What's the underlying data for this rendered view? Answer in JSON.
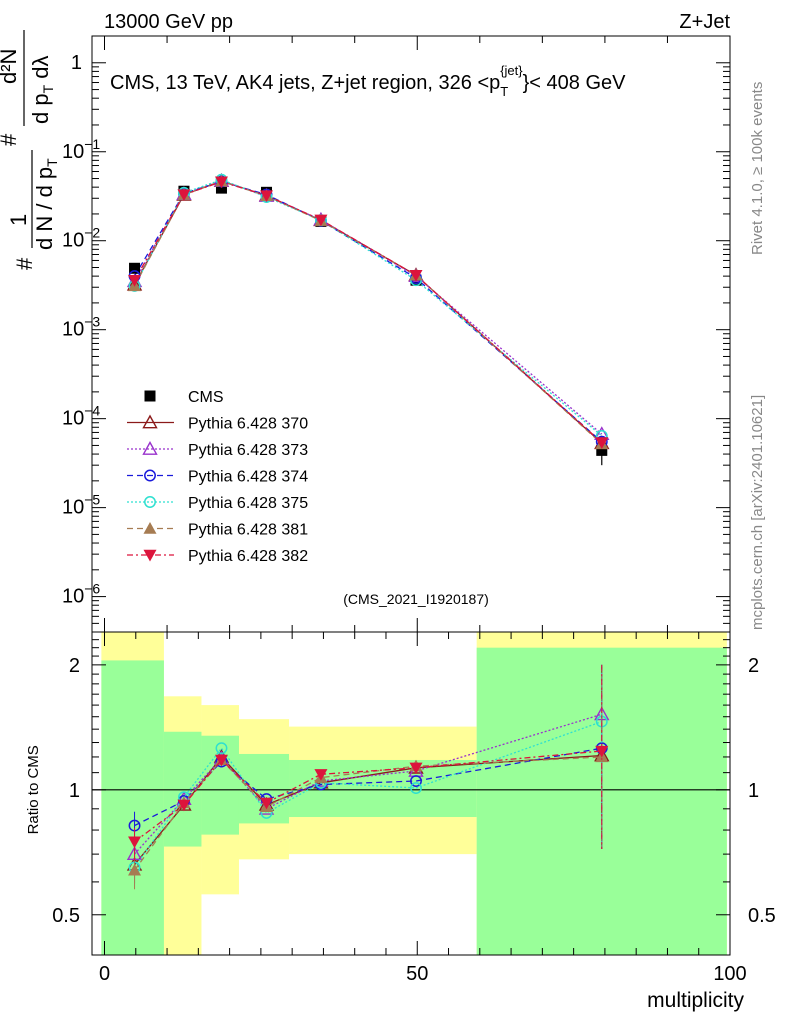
{
  "header": {
    "left": "13000 GeV pp",
    "right": "Z+Jet"
  },
  "side": {
    "top": "Rivet 4.1.0, ≥ 100k events",
    "bottom": "mcplots.cern.ch [arXiv:2401.10621]"
  },
  "chart_data": [
    {
      "type": "line",
      "title": "CMS, 13 TeV, AK4 jets, Z+jet region, 326 <p_T^{jet}< 408 GeV",
      "title_parts": {
        "main": "CMS, 13 TeV, AK4 jets, Z+jet region, 326 <p",
        "sub": "T",
        "sup": "{jet}",
        "end": "}< 408 GeV"
      },
      "ylabel": "1/dN/dp_T  d²N/dp_T dλ",
      "ylabel_parts": {
        "pre": "1",
        "den": "d N / d p",
        "sub": "T",
        "num": "d²N",
        "den2": "d p",
        "sub2": "T",
        "lam": " dλ",
        "hash": "#"
      },
      "yscale": "log",
      "ylim": [
        4e-07,
        2.0
      ],
      "y_ticks": [
        {
          "v": 1e-06,
          "base": "10",
          "exp": "−6"
        },
        {
          "v": 1e-05,
          "base": "10",
          "exp": "−5"
        },
        {
          "v": 0.0001,
          "base": "10",
          "exp": "−4"
        },
        {
          "v": 0.001,
          "base": "10",
          "exp": "−3"
        },
        {
          "v": 0.01,
          "base": "10",
          "exp": "−2"
        },
        {
          "v": 0.1,
          "base": "10",
          "exp": "−1"
        },
        {
          "v": 1,
          "base": "1",
          "exp": ""
        }
      ],
      "xlim": [
        -2,
        100
      ],
      "x": [
        4.8,
        12.7,
        18.7,
        25.9,
        34.6,
        49.8,
        79.5
      ],
      "watermark": "(CMS_2021_I1920187)",
      "legend_position": "lower-left",
      "data": {
        "name": "CMS",
        "values": [
          0.0049,
          0.036,
          0.039,
          0.035,
          0.0165,
          0.0036,
          4.4e-05
        ],
        "errors": [
          0.0004,
          0.003,
          0.003,
          0.003,
          0.001,
          0.0003,
          1.4e-05
        ]
      },
      "series": [
        {
          "name": "Pythia 6.428 370",
          "color": "#8b1a1a",
          "dash": "",
          "marker": "triangle-open",
          "values": [
            0.0032,
            0.0328,
            0.0468,
            0.0322,
            0.017,
            0.0041,
            5.3e-05
          ]
        },
        {
          "name": "Pythia 6.428 373",
          "color": "#9932cc",
          "dash": "2,2",
          "marker": "triangle-open",
          "values": [
            0.0035,
            0.0334,
            0.047,
            0.0318,
            0.0172,
            0.004,
            6.7e-05
          ]
        },
        {
          "name": "Pythia 6.428 374",
          "color": "#1a1adb",
          "dash": "6,4",
          "marker": "circle-open",
          "values": [
            0.004,
            0.034,
            0.0462,
            0.033,
            0.0168,
            0.0038,
            5.5e-05
          ]
        },
        {
          "name": "Pythia 6.428 375",
          "color": "#2ee0d0",
          "dash": "2,2",
          "marker": "circle-open",
          "values": [
            0.0031,
            0.0345,
            0.0485,
            0.031,
            0.017,
            0.0036,
            6.4e-05
          ]
        },
        {
          "name": "Pythia 6.428 381",
          "color": "#a67c52",
          "dash": "6,4",
          "marker": "triangle-filled",
          "values": [
            0.0031,
            0.033,
            0.0465,
            0.032,
            0.0168,
            0.0041,
            5.2e-05
          ]
        },
        {
          "name": "Pythia 6.428 382",
          "color": "#dc143c",
          "dash": "6,3,2,3",
          "marker": "triangle-down-filled",
          "values": [
            0.0036,
            0.033,
            0.046,
            0.0322,
            0.0172,
            0.0041,
            5.4e-05
          ]
        }
      ]
    },
    {
      "type": "line",
      "ylabel": "Ratio to CMS",
      "xlabel": "multiplicity",
      "yscale": "log",
      "ylim": [
        0.4,
        2.4
      ],
      "y_ticks": [
        0.5,
        1,
        2
      ],
      "x_ticks": [
        0,
        50,
        100
      ],
      "reference": 1,
      "bands": {
        "green": [
          {
            "x0": -0.5,
            "x1": 9.5,
            "lo": 0.4,
            "hi": 2.05
          },
          {
            "x0": 9.5,
            "x1": 15.5,
            "lo": 0.73,
            "hi": 1.38
          },
          {
            "x0": 15.5,
            "x1": 21.5,
            "lo": 0.78,
            "hi": 1.35
          },
          {
            "x0": 21.5,
            "x1": 29.5,
            "lo": 0.83,
            "hi": 1.22
          },
          {
            "x0": 29.5,
            "x1": 59.5,
            "lo": 0.86,
            "hi": 1.18
          },
          {
            "x0": 59.5,
            "x1": 99.5,
            "lo": 0.4,
            "hi": 2.2
          }
        ],
        "yellow": [
          {
            "x0": -0.5,
            "x1": 9.5,
            "lo": 0.4,
            "hi": 2.4
          },
          {
            "x0": 9.5,
            "x1": 15.5,
            "lo": 0.4,
            "hi": 1.68
          },
          {
            "x0": 15.5,
            "x1": 21.5,
            "lo": 0.56,
            "hi": 1.6
          },
          {
            "x0": 21.5,
            "x1": 29.5,
            "lo": 0.68,
            "hi": 1.48
          },
          {
            "x0": 29.5,
            "x1": 59.5,
            "lo": 0.7,
            "hi": 1.42
          },
          {
            "x0": 59.5,
            "x1": 99.5,
            "lo": 0.4,
            "hi": 2.4
          }
        ]
      },
      "series": [
        {
          "name": "Pythia 6.428 370",
          "values": [
            0.66,
            0.92,
            1.2,
            0.92,
            1.04,
            1.13,
            1.21
          ]
        },
        {
          "name": "Pythia 6.428 373",
          "values": [
            0.7,
            0.95,
            1.19,
            0.9,
            1.05,
            1.11,
            1.52
          ]
        },
        {
          "name": "Pythia 6.428 374",
          "values": [
            0.82,
            0.94,
            1.17,
            0.95,
            1.03,
            1.05,
            1.26
          ]
        },
        {
          "name": "Pythia 6.428 375",
          "values": [
            0.65,
            0.96,
            1.26,
            0.88,
            1.04,
            1.01,
            1.46
          ]
        },
        {
          "name": "Pythia 6.428 381",
          "values": [
            0.64,
            0.93,
            1.18,
            0.91,
            1.07,
            1.14,
            1.2
          ]
        },
        {
          "name": "Pythia 6.428 382",
          "values": [
            0.75,
            0.92,
            1.18,
            0.93,
            1.09,
            1.13,
            1.24
          ]
        }
      ],
      "error_last": [
        0.72,
        2.0
      ]
    }
  ]
}
